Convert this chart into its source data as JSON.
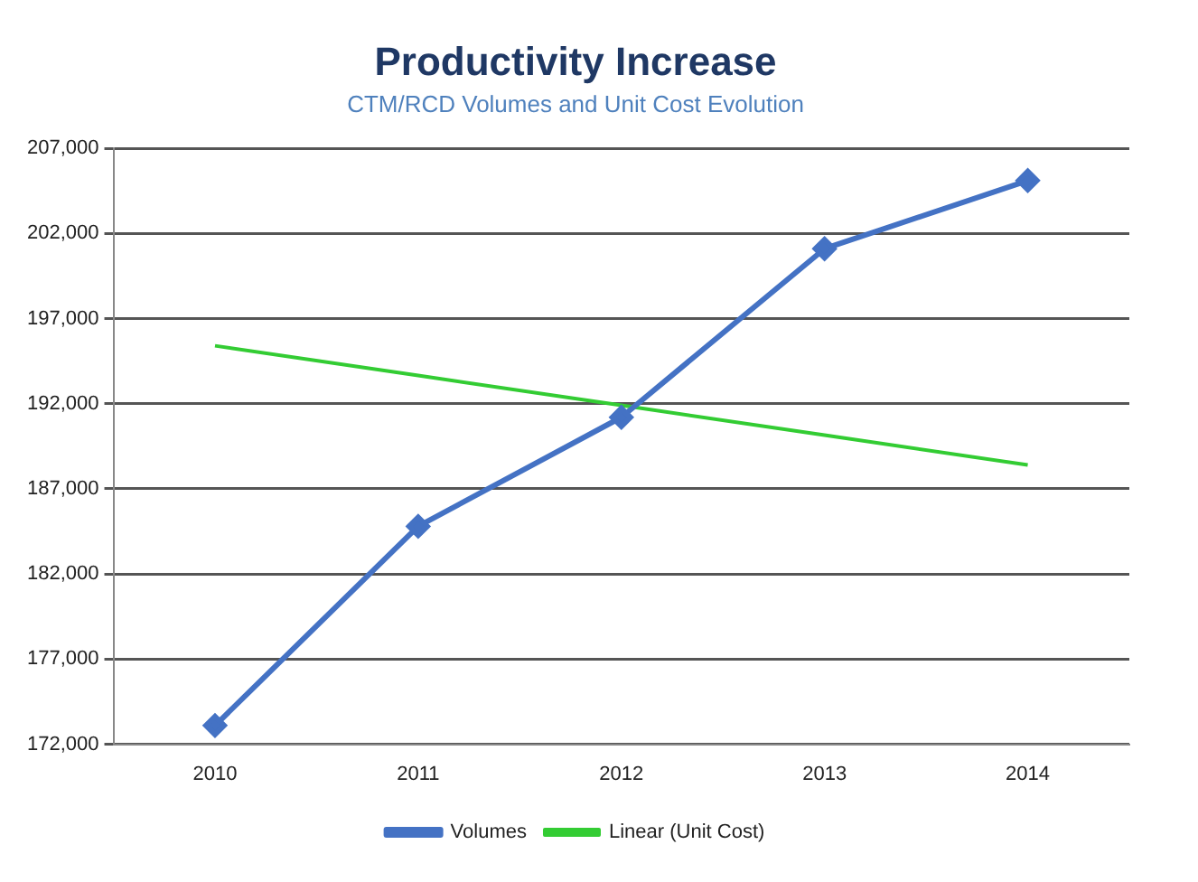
{
  "chart_data": {
    "type": "line",
    "title": "Productivity Increase",
    "subtitle": "CTM/RCD Volumes and Unit Cost Evolution",
    "categories": [
      "2010",
      "2011",
      "2012",
      "2013",
      "2014"
    ],
    "series": [
      {
        "name": "Volumes",
        "color": "#4472c4",
        "values": [
          173100,
          184800,
          191200,
          201100,
          205100
        ],
        "marker": "diamond"
      },
      {
        "name": "Linear (Unit Cost)",
        "type": "line",
        "color": "#33cc33",
        "values": [
          195400,
          193650,
          191900,
          190150,
          188400
        ],
        "marker": "none"
      }
    ],
    "ylim": [
      172000,
      207000
    ],
    "yticks": [
      {
        "value": 172000,
        "label": "172,000"
      },
      {
        "value": 177000,
        "label": "177,000"
      },
      {
        "value": 182000,
        "label": "182,000"
      },
      {
        "value": 187000,
        "label": "187,000"
      },
      {
        "value": 192000,
        "label": "192,000"
      },
      {
        "value": 197000,
        "label": "197,000"
      },
      {
        "value": 202000,
        "label": "202,000"
      },
      {
        "value": 207000,
        "label": "207,000"
      }
    ],
    "grid": "y",
    "legend": "bottom",
    "line_style": "solid"
  }
}
